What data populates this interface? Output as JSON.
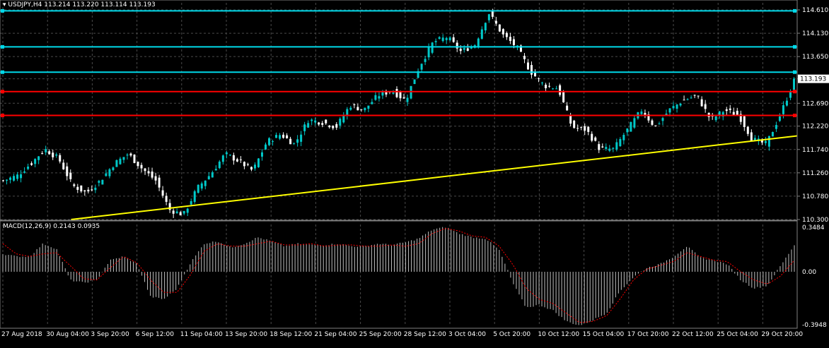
{
  "header": {
    "symbol": "USDJPY,H4",
    "ohlc": "113.214 113.220 113.114 113.193"
  },
  "macd_header": {
    "label": "MACD(12,26,9) 0.2143 0.0935"
  },
  "colors": {
    "background": "#000000",
    "grid": "#4a4a4a",
    "bull_candle": "#00c8c8",
    "bear_candle": "#ffffff",
    "resistance_line": "#00d8e8",
    "support_line": "#ff0000",
    "trend_line": "#ffff00",
    "macd_histogram": "#c0c0c0",
    "macd_signal": "#ff0000",
    "current_price_tag": "#ffffff"
  },
  "chart_data": [
    {
      "type": "candlestick",
      "title": "USDJPY,H4",
      "ylim": [
        110.3,
        114.61
      ],
      "y_ticks": [
        "114.610",
        "114.130",
        "113.650",
        "113.193",
        "112.690",
        "112.220",
        "111.740",
        "111.260",
        "110.780",
        "110.300"
      ],
      "current_price": "113.193",
      "x_ticks": [
        "27 Aug 2018",
        "30 Aug 04:00",
        "3 Sep 20:00",
        "6 Sep 12:00",
        "11 Sep 04:00",
        "13 Sep 20:00",
        "18 Sep 12:00",
        "21 Sep 04:00",
        "25 Sep 20:00",
        "28 Sep 12:00",
        "3 Oct 04:00",
        "5 Oct 20:00",
        "10 Oct 12:00",
        "15 Oct 04:00",
        "17 Oct 20:00",
        "22 Oct 12:00",
        "25 Oct 04:00",
        "29 Oct 20:00"
      ],
      "close_path_anchors": [
        111.1,
        111.2,
        111.45,
        111.75,
        111.55,
        111.0,
        110.85,
        111.1,
        111.45,
        111.65,
        111.35,
        111.1,
        110.5,
        110.4,
        110.95,
        111.25,
        111.65,
        111.5,
        111.3,
        111.9,
        112.05,
        111.85,
        112.35,
        112.3,
        112.2,
        112.65,
        112.55,
        112.85,
        112.95,
        112.75,
        113.45,
        113.95,
        114.05,
        113.75,
        113.9,
        114.55,
        114.1,
        113.85,
        113.35,
        113.05,
        113.0,
        112.2,
        112.15,
        111.75,
        111.75,
        112.15,
        112.55,
        112.2,
        112.55,
        112.75,
        112.85,
        112.35,
        112.55,
        112.45,
        111.95,
        111.85,
        112.45,
        113.15
      ],
      "horizontal_levels": [
        {
          "value": 114.59,
          "kind": "resistance"
        },
        {
          "value": 113.85,
          "kind": "resistance"
        },
        {
          "value": 113.33,
          "kind": "resistance"
        },
        {
          "value": 112.93,
          "kind": "support"
        },
        {
          "value": 112.44,
          "kind": "support"
        }
      ],
      "trend_line": {
        "from": {
          "x_label": "3 Sep 20:00",
          "value": 110.3
        },
        "to": {
          "x_label": "29 Oct 20:00",
          "value": 112.02
        }
      }
    },
    {
      "type": "bar",
      "title": "MACD(12,26,9) 0.2143 0.0935",
      "ylim": [
        -0.3948,
        0.3484
      ],
      "y_ticks": [
        "0.3484",
        "0.00",
        "-0.3948"
      ],
      "macd_value": 0.2143,
      "signal_value": 0.0935,
      "histogram_anchors": [
        0.14,
        0.12,
        0.12,
        0.22,
        0.18,
        -0.06,
        -0.08,
        -0.06,
        0.09,
        0.12,
        0.06,
        -0.18,
        -0.2,
        -0.12,
        0.07,
        0.22,
        0.24,
        0.19,
        0.22,
        0.27,
        0.24,
        0.2,
        0.22,
        0.21,
        0.21,
        0.22,
        0.2,
        0.2,
        0.22,
        0.21,
        0.23,
        0.26,
        0.33,
        0.35,
        0.3,
        0.27,
        0.26,
        0.17,
        -0.08,
        -0.26,
        -0.24,
        -0.28,
        -0.36,
        -0.39,
        -0.35,
        -0.3,
        -0.14,
        -0.04,
        0.03,
        0.06,
        0.12,
        0.2,
        0.11,
        0.09,
        0.06,
        -0.06,
        -0.12,
        -0.1,
        0.05,
        0.21
      ],
      "signal_anchors": [
        0.22,
        0.14,
        0.12,
        0.14,
        0.15,
        0.05,
        -0.05,
        -0.06,
        0.03,
        0.12,
        0.07,
        -0.06,
        -0.15,
        -0.15,
        -0.02,
        0.16,
        0.22,
        0.2,
        0.2,
        0.22,
        0.24,
        0.21,
        0.21,
        0.22,
        0.2,
        0.21,
        0.21,
        0.2,
        0.2,
        0.21,
        0.2,
        0.22,
        0.3,
        0.34,
        0.32,
        0.28,
        0.27,
        0.2,
        0.06,
        -0.12,
        -0.2,
        -0.23,
        -0.3,
        -0.37,
        -0.36,
        -0.32,
        -0.2,
        -0.06,
        0.02,
        0.05,
        0.08,
        0.15,
        0.12,
        0.09,
        0.08,
        0.0,
        -0.06,
        -0.09,
        -0.03,
        0.09
      ]
    }
  ]
}
